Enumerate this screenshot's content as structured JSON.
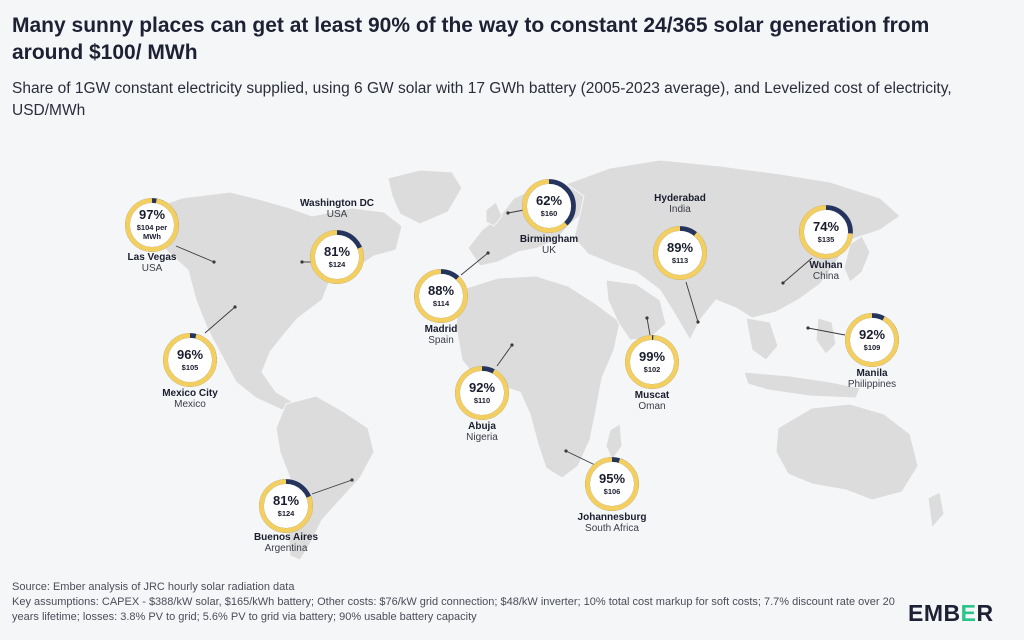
{
  "title": "Many sunny places can get at least 90% of the way to constant 24/365 solar generation from around $100/ MWh",
  "subtitle": "Share of 1GW constant electricity supplied, using 6 GW solar with 17 GWh battery (2005-2023 average), and Levelized cost of electricity, USD/MWh",
  "footer": {
    "source": "Source: Ember analysis of JRC hourly solar radiation data",
    "assumptions": "Key assumptions: CAPEX - $388/kW solar, $165/kWh battery; Other costs: $76/kW grid connection; $48/kW inverter; 10% total cost markup for soft costs; 7.7% discount rate over 20 years lifetime; losses: 3.8% PV to grid; 5.6% PV to grid via battery; 90% usable battery capacity"
  },
  "logo": {
    "text_pre": "EMB",
    "text_accent": "E",
    "text_post": "R"
  },
  "colors": {
    "share": "#f3cf62",
    "gap": "#24345c",
    "land": "#dcdcdc",
    "leader": "#3a3a3a"
  },
  "map_data": {
    "cities": [
      {
        "id": "las-vegas",
        "city": "Las Vegas",
        "country": "USA",
        "share_pct": 97,
        "share_label": "97%",
        "cost_label": "$104 per",
        "cost_label2": "MWh"
      },
      {
        "id": "washington-dc",
        "city": "Washington DC",
        "country": "USA",
        "share_pct": 81,
        "share_label": "81%",
        "cost_label": "$124"
      },
      {
        "id": "mexico-city",
        "city": "Mexico City",
        "country": "Mexico",
        "share_pct": 96,
        "share_label": "96%",
        "cost_label": "$105"
      },
      {
        "id": "buenos-aires",
        "city": "Buenos Aires",
        "country": "Argentina",
        "share_pct": 81,
        "share_label": "81%",
        "cost_label": "$124"
      },
      {
        "id": "madrid",
        "city": "Madrid",
        "country": "Spain",
        "share_pct": 88,
        "share_label": "88%",
        "cost_label": "$114"
      },
      {
        "id": "birmingham",
        "city": "Birmingham",
        "country": "UK",
        "share_pct": 62,
        "share_label": "62%",
        "cost_label": "$160"
      },
      {
        "id": "abuja",
        "city": "Abuja",
        "country": "Nigeria",
        "share_pct": 92,
        "share_label": "92%",
        "cost_label": "$110"
      },
      {
        "id": "johannesburg",
        "city": "Johannesburg",
        "country": "South Africa",
        "share_pct": 95,
        "share_label": "95%",
        "cost_label": "$106"
      },
      {
        "id": "muscat",
        "city": "Muscat",
        "country": "Oman",
        "share_pct": 99,
        "share_label": "99%",
        "cost_label": "$102"
      },
      {
        "id": "hyderabad",
        "city": "Hyderabad",
        "country": "India",
        "share_pct": 89,
        "share_label": "89%",
        "cost_label": "$113"
      },
      {
        "id": "wuhan",
        "city": "Wuhan",
        "country": "China",
        "share_pct": 74,
        "share_label": "74%",
        "cost_label": "$135"
      },
      {
        "id": "manila",
        "city": "Manila",
        "country": "Philippines",
        "share_pct": 92,
        "share_label": "92%",
        "cost_label": "$109"
      }
    ]
  }
}
